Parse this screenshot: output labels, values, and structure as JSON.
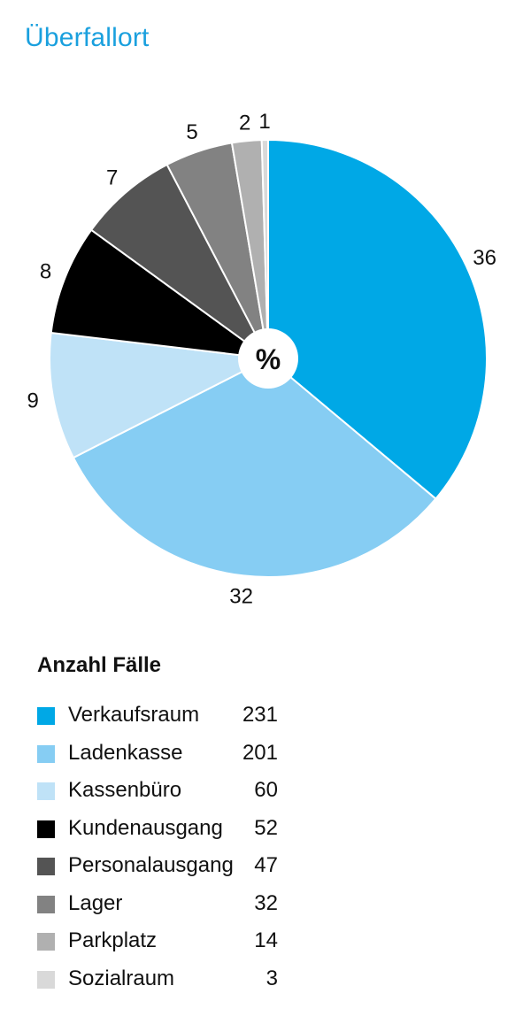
{
  "title": "Überfallort",
  "chart_data": {
    "type": "pie",
    "title": "Überfallort",
    "center_label": "%",
    "legend_title": "Anzahl Fälle",
    "legend_position": "bottom",
    "categories": [
      "Verkaufsraum",
      "Ladenkasse",
      "Kassenbüro",
      "Kundenausgang",
      "Personalausgang",
      "Lager",
      "Parkplatz",
      "Sozialraum"
    ],
    "counts": [
      231,
      201,
      60,
      52,
      47,
      32,
      14,
      3
    ],
    "percentages": [
      36,
      32,
      9,
      8,
      7,
      5,
      2,
      1
    ],
    "colors": [
      "#00a8e6",
      "#86cdf3",
      "#bfe2f7",
      "#000000",
      "#545454",
      "#828282",
      "#b0b0b0",
      "#d9d9d9"
    ]
  }
}
